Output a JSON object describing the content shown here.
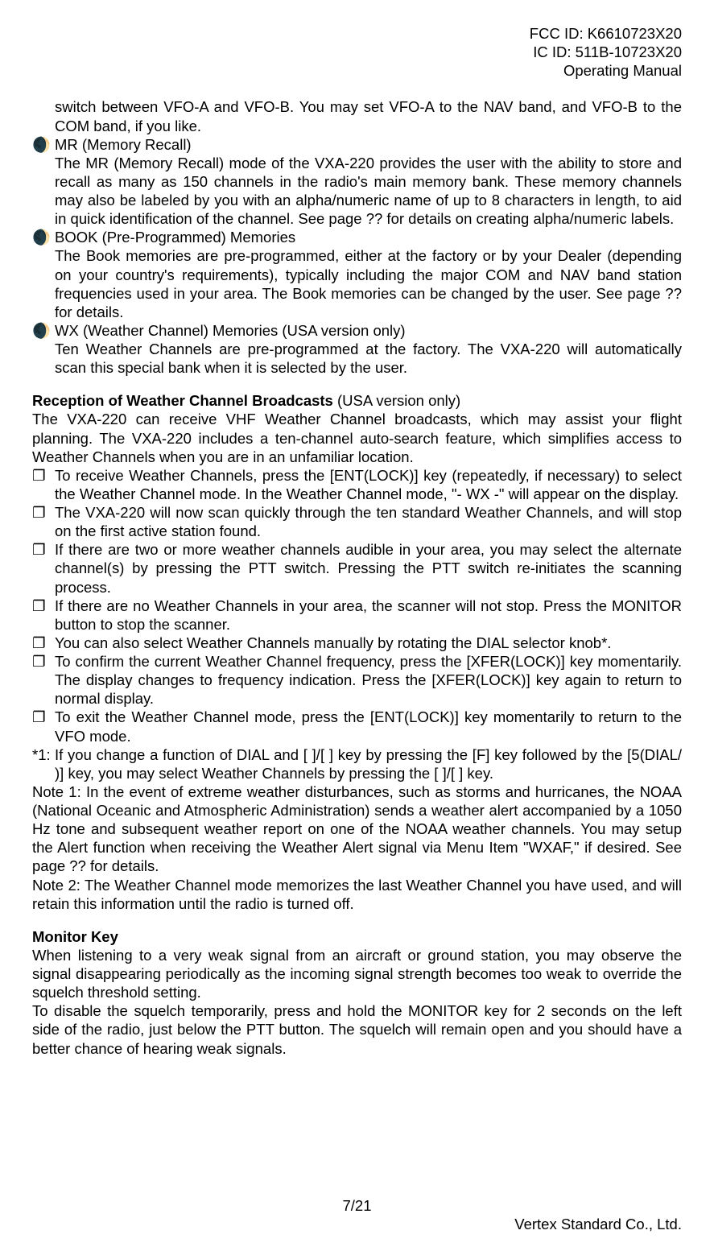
{
  "header": {
    "fcc": "FCC ID: K6610723X20",
    "ic": "IC ID: 511B-10723X20",
    "title": "Operating Manual"
  },
  "intro_para": "switch between VFO-A and VFO-B. You may set VFO-A to the NAV band, and VFO-B to the COM band, if you like.",
  "modes": [
    {
      "marker": "🌒",
      "title": "MR (Memory Recall)",
      "body": "The MR (Memory Recall) mode of the VXA-220 provides the user with the ability to store and recall as many as 150 channels in the radio's main memory bank. These memory channels may also be labeled by you with an alpha/numeric name of up to 8 characters in length, to aid in quick identification of the channel. See page ?? for details on creating alpha/numeric labels."
    },
    {
      "marker": "🌒",
      "title": "BOOK (Pre-Programmed) Memories",
      "body": "The Book memories are pre-programmed, either at the factory or by your Dealer (depending on your country's requirements), typically including the major COM and NAV band station frequencies used in your area. The Book memories can be changed by the user. See page ?? for details."
    },
    {
      "marker": "🌒",
      "title": "WX (Weather Channel) Memories (USA version only)",
      "body": "Ten Weather Channels are pre-programmed at the factory. The VXA-220 will automatically scan this special bank when it is selected by the user."
    }
  ],
  "weather": {
    "heading_bold": "Reception of Weather Channel Broadcasts",
    "heading_rest": " (USA version only)",
    "intro": "The VXA-220 can receive VHF Weather Channel broadcasts, which may assist your flight planning. The VXA-220 includes a ten-channel auto-search feature, which simplifies access to Weather Channels when you are in an unfamiliar location.",
    "steps": [
      "To receive Weather Channels, press the [ENT(LOCK)] key (repeatedly, if necessary) to select the Weather Channel mode. In the Weather Channel mode, \"- WX -\" will appear on the display.",
      "The VXA-220 will now scan quickly through the ten standard Weather Channels, and will stop on the first active station found.",
      "If there are two or more weather channels audible in your area, you may select the alternate channel(s) by pressing the PTT switch. Pressing the PTT switch re-initiates the scanning process.",
      "If there are no Weather Channels in your area, the scanner will not stop. Press the MONITOR button to stop the scanner.",
      "You can also select Weather Channels manually by rotating the DIAL selector knob*.",
      "To confirm the current Weather Channel frequency, press the [XFER(LOCK)] key momentarily. The display changes to frequency indication. Press the [XFER(LOCK)] key again to return to normal display.",
      "To exit the Weather Channel mode, press the [ENT(LOCK)] key momentarily to return to the VFO mode."
    ],
    "step_marker": "❐",
    "footnote_label": "*1:",
    "footnote": "If you change a function of DIAL and [  ]/[  ] key by pressing the [F] key followed by the [5(DIAL/    )] key, you may select Weather Channels by pressing the [  ]/[  ] key.",
    "note1": "Note 1: In the event of extreme weather disturbances, such as storms and hurricanes, the NOAA (National Oceanic and Atmospheric Administration) sends a weather alert accompanied by a 1050 Hz tone and subsequent weather report on one of the NOAA weather channels. You may setup the Alert function when receiving the Weather Alert signal via Menu Item \"WXAF,\" if desired. See page ?? for details.",
    "note2": "Note 2: The Weather Channel mode memorizes the last Weather Channel you have used, and will retain this information until the radio is turned off."
  },
  "monitor": {
    "heading": "Monitor Key",
    "p1": "When listening to a very weak signal from an aircraft or ground station, you may observe the signal disappearing periodically as the incoming signal strength becomes too weak to override the squelch threshold setting.",
    "p2": "To disable the squelch temporarily, press and hold the MONITOR key for 2 seconds on the left side of the radio, just below the PTT button. The squelch will remain open and you should have a better chance of hearing weak signals."
  },
  "footer": {
    "page": "7/21",
    "company": "Vertex Standard Co., Ltd."
  },
  "colors": {
    "text": "#000000",
    "background": "#ffffff"
  },
  "typography": {
    "body_fontsize": 18.5,
    "font_family": "Arial"
  }
}
